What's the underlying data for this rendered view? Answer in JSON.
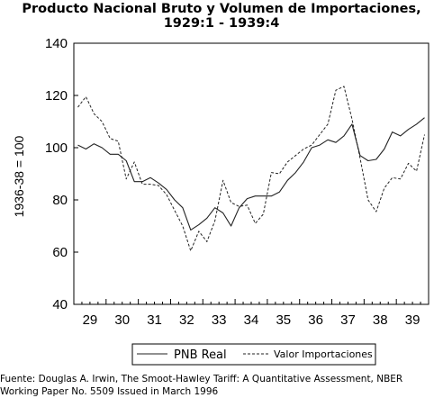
{
  "chart_data": {
    "type": "line",
    "title": "Producto Nacional Bruto y Volumen de Importaciones,",
    "subtitle": "1929:1 - 1939:4",
    "ylabel": "1936-38 = 100",
    "xlabel": "",
    "ylim": [
      40,
      140
    ],
    "yticks": [
      40,
      60,
      80,
      100,
      120,
      140
    ],
    "xlim": [
      1929,
      1940
    ],
    "xtick_labels": [
      "29",
      "30",
      "31",
      "32",
      "33",
      "34",
      "35",
      "36",
      "37",
      "38",
      "39"
    ],
    "grid": false,
    "legend_position": "bottom",
    "series": [
      {
        "name": "PNB Real",
        "style": "solid",
        "color": "#222222",
        "values": [
          101,
          99.5,
          101.5,
          100,
          97.5,
          97.5,
          95,
          87,
          87,
          88.5,
          86.5,
          84,
          80,
          77,
          68.5,
          70.5,
          73,
          77,
          75,
          70,
          77,
          80.5,
          81.5,
          81.5,
          81.5,
          83,
          87.5,
          90.5,
          94.5,
          100,
          101,
          103,
          102,
          104.5,
          109,
          97,
          95,
          95.5,
          99.5,
          106,
          104.5,
          107,
          109,
          111.5
        ]
      },
      {
        "name": "Valor Importaciones",
        "style": "dashed",
        "color": "#222222",
        "values": [
          115.5,
          119.5,
          113,
          110,
          103.5,
          102.5,
          88,
          94.5,
          86,
          86,
          85.5,
          82,
          76,
          70,
          60.5,
          68,
          64,
          72,
          87.5,
          79,
          77.5,
          78,
          71,
          74.5,
          90.5,
          90,
          94.5,
          97,
          99.5,
          101,
          105,
          109,
          122,
          123.5,
          111,
          96,
          80,
          75.5,
          84.5,
          88.5,
          88,
          94,
          91,
          105
        ]
      }
    ]
  },
  "source_line1": "Fuente: Douglas A. Irwin, The Smoot-Hawley Tariff: A Quantitative Assessment, NBER",
  "source_line2": "Working Paper No. 5509 Issued in March 1996"
}
